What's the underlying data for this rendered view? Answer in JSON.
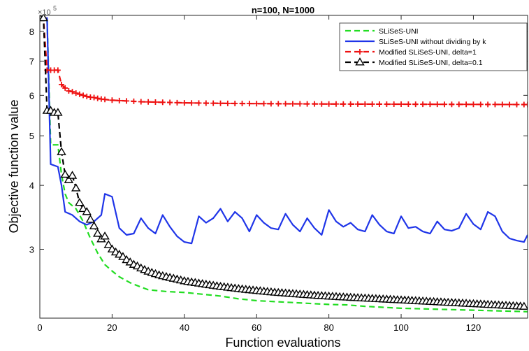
{
  "chart_data": {
    "type": "line",
    "title": "n=100, N=1000",
    "xlabel": "Function evaluations",
    "ylabel": "Objective function value",
    "yscale": "log",
    "y_exponent_label": "×10",
    "y_exponent_power": "5",
    "xlim": [
      0,
      135
    ],
    "ylim": [
      220000,
      860000
    ],
    "x_ticks": [
      0,
      20,
      40,
      60,
      80,
      100,
      120
    ],
    "y_ticks": [
      {
        "value": 300000,
        "label": "3"
      },
      {
        "value": 400000,
        "label": "4"
      },
      {
        "value": 500000,
        "label": "5"
      },
      {
        "value": 600000,
        "label": "6"
      },
      {
        "value": 700000,
        "label": "7"
      },
      {
        "value": 800000,
        "label": "8"
      }
    ],
    "grid": false,
    "legend_position": "top-right",
    "series": [
      {
        "name": "SLiSeS-UNI",
        "color": "#22dd22",
        "style": "dashed",
        "marker": "none",
        "x": [
          0,
          2,
          3,
          5,
          6,
          7,
          8,
          10,
          12,
          14,
          16,
          18,
          20,
          22,
          25,
          28,
          30,
          35,
          40,
          45,
          50,
          55,
          60,
          65,
          70,
          75,
          80,
          85,
          90,
          95,
          100,
          105,
          110,
          115,
          120,
          125,
          130,
          135
        ],
        "y": [
          850000,
          850000,
          480000,
          480000,
          420000,
          385000,
          370000,
          360000,
          340000,
          315000,
          295000,
          280000,
          272000,
          265000,
          258000,
          253000,
          250000,
          248000,
          247000,
          245000,
          243000,
          240000,
          238000,
          237000,
          236000,
          235000,
          234000,
          233500,
          232000,
          231000,
          230000,
          229500,
          229000,
          228500,
          228000,
          227500,
          227000,
          226500
        ]
      },
      {
        "name": "SLiSeS-UNI without dividing by k",
        "color": "#1f35e8",
        "style": "solid",
        "marker": "none",
        "x": [
          0,
          2,
          3,
          5,
          6,
          7,
          9,
          11,
          13,
          15,
          17,
          18,
          20,
          22,
          24,
          26,
          28,
          30,
          32,
          34,
          36,
          38,
          40,
          42,
          44,
          46,
          48,
          50,
          52,
          54,
          56,
          58,
          60,
          62,
          64,
          66,
          68,
          70,
          72,
          74,
          76,
          78,
          80,
          82,
          84,
          86,
          88,
          90,
          92,
          94,
          96,
          98,
          100,
          102,
          104,
          106,
          108,
          110,
          112,
          114,
          116,
          118,
          120,
          122,
          124,
          126,
          128,
          130,
          132,
          134,
          135
        ],
        "y": [
          850000,
          850000,
          440000,
          435000,
          400000,
          355000,
          350000,
          340000,
          335000,
          340000,
          350000,
          385000,
          380000,
          330000,
          320000,
          322000,
          345000,
          330000,
          322000,
          350000,
          332000,
          318000,
          310000,
          308000,
          348000,
          338000,
          345000,
          360000,
          340000,
          355000,
          345000,
          325000,
          350000,
          338000,
          330000,
          328000,
          352000,
          335000,
          325000,
          345000,
          330000,
          320000,
          358000,
          340000,
          332000,
          338000,
          328000,
          325000,
          350000,
          335000,
          325000,
          322000,
          348000,
          330000,
          332000,
          325000,
          322000,
          340000,
          328000,
          326000,
          330000,
          352000,
          336000,
          328000,
          355000,
          348000,
          325000,
          315000,
          312000,
          310000,
          320000
        ]
      },
      {
        "name": "Modified SLiSeS-UNI, delta=1",
        "color": "#ee1111",
        "style": "dashed",
        "marker": "plus",
        "x": [
          0,
          1,
          2,
          3,
          4,
          5,
          6,
          7,
          8,
          9,
          10,
          11,
          12,
          13,
          14,
          15,
          16,
          17,
          18,
          20,
          22,
          24,
          26,
          28,
          30,
          32,
          34,
          36,
          38,
          40,
          42,
          44,
          46,
          48,
          50,
          52,
          54,
          56,
          58,
          60,
          62,
          64,
          66,
          68,
          70,
          72,
          74,
          76,
          78,
          80,
          82,
          84,
          86,
          88,
          90,
          92,
          94,
          96,
          98,
          100,
          102,
          104,
          106,
          108,
          110,
          112,
          114,
          116,
          118,
          120,
          122,
          124,
          126,
          128,
          130,
          132,
          134,
          135
        ],
        "y": [
          850000,
          850000,
          672000,
          672000,
          672000,
          672000,
          630000,
          620000,
          612000,
          610000,
          606000,
          603000,
          600000,
          597000,
          595000,
          594000,
          592000,
          590000,
          589000,
          587000,
          586000,
          585000,
          584000,
          583000,
          582500,
          582000,
          581500,
          581000,
          580500,
          580000,
          579700,
          579500,
          579200,
          579000,
          578800,
          578600,
          578400,
          578300,
          578100,
          578000,
          577900,
          577800,
          577700,
          577600,
          577500,
          577400,
          577300,
          577200,
          577100,
          577000,
          576950,
          576900,
          576850,
          576800,
          576750,
          576700,
          576650,
          576600,
          576550,
          576500,
          576450,
          576400,
          576350,
          576300,
          576250,
          576200,
          576150,
          576100,
          576050,
          576000,
          575950,
          575900,
          575850,
          575800,
          575750,
          575700,
          575650,
          575600
        ]
      },
      {
        "name": "Modified SLiSeS-UNI, delta=0.1",
        "color": "#000000",
        "style": "dashed",
        "marker": "triangle",
        "x": [
          0,
          1,
          2,
          3,
          4,
          5,
          6,
          7,
          8,
          9,
          10,
          11,
          12,
          13,
          14,
          15,
          16,
          17,
          18,
          19,
          20,
          21,
          22,
          23,
          24,
          25,
          26,
          27,
          28,
          29,
          30,
          31,
          32,
          33,
          34,
          35,
          36,
          37,
          38,
          39,
          40,
          41,
          42,
          43,
          44,
          45,
          46,
          47,
          48,
          49,
          50,
          51,
          52,
          53,
          54,
          55,
          56,
          57,
          58,
          59,
          60,
          61,
          62,
          63,
          64,
          65,
          66,
          67,
          68,
          69,
          70,
          71,
          72,
          73,
          74,
          75,
          76,
          77,
          78,
          79,
          80,
          81,
          82,
          83,
          84,
          85,
          86,
          87,
          88,
          89,
          90,
          91,
          92,
          93,
          94,
          95,
          96,
          97,
          98,
          99,
          100,
          101,
          102,
          103,
          104,
          105,
          106,
          107,
          108,
          109,
          110,
          111,
          112,
          113,
          114,
          115,
          116,
          117,
          118,
          119,
          120,
          121,
          122,
          123,
          124,
          125,
          126,
          127,
          128,
          129,
          130,
          131,
          132,
          133,
          134
        ],
        "y": [
          850000,
          850000,
          560000,
          560000,
          555000,
          555000,
          465000,
          420000,
          410000,
          418000,
          395000,
          370000,
          360000,
          355000,
          343000,
          333000,
          322000,
          314000,
          318000,
          306000,
          300000,
          296000,
          293000,
          290000,
          286000,
          283000,
          280000,
          278000,
          275500,
          273500,
          271500,
          270000,
          268500,
          267000,
          266000,
          265000,
          264000,
          263000,
          262000,
          261000,
          260000,
          259300,
          258600,
          258000,
          257300,
          256700,
          256000,
          255400,
          254800,
          254200,
          253600,
          253100,
          252600,
          252100,
          251600,
          251100,
          250600,
          250200,
          249800,
          249400,
          249000,
          248600,
          248200,
          247800,
          247400,
          247000,
          246700,
          246400,
          246100,
          245800,
          245500,
          245200,
          244900,
          244600,
          244300,
          244000,
          243700,
          243400,
          243200,
          243000,
          242700,
          242500,
          242300,
          242000,
          241800,
          241600,
          241400,
          241200,
          241000,
          240800,
          240600,
          240400,
          240200,
          240000,
          239800,
          239600,
          239400,
          239200,
          239000,
          238800,
          238600,
          238400,
          238200,
          238000,
          237800,
          237600,
          237400,
          237200,
          237000,
          236800,
          236600,
          236400,
          236200,
          236000,
          235800,
          235600,
          235400,
          235200,
          235000,
          234800,
          234600,
          234400,
          234200,
          234000,
          233800,
          233600,
          233400,
          233200,
          233000,
          232800,
          232600,
          232400,
          232200,
          232000,
          231800
        ]
      }
    ]
  }
}
